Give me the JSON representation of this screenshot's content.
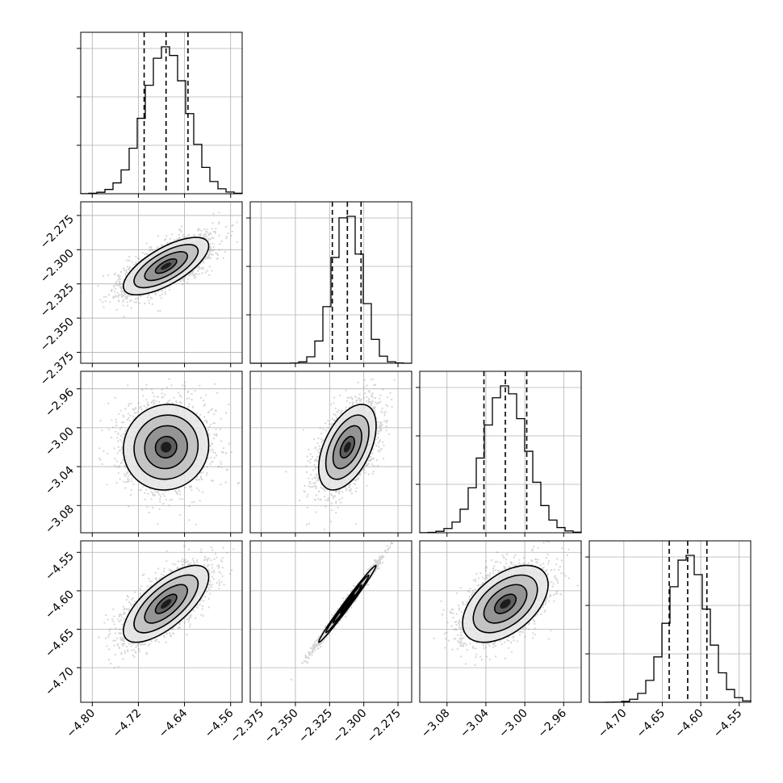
{
  "chart_data": {
    "type": "corner",
    "parameters": [
      {
        "index": 0,
        "range": [
          -4.82,
          -4.54
        ],
        "ticks": [
          -4.8,
          -4.72,
          -4.64,
          -4.56
        ],
        "tick_labels": [
          "−4.80",
          "−4.72",
          "−4.64",
          "−4.56"
        ],
        "quantiles": [
          -4.71,
          -4.672,
          -4.634
        ],
        "mean": -4.672,
        "sd": 0.037
      },
      {
        "index": 1,
        "range": [
          -2.383,
          -2.265
        ],
        "ticks": [
          -2.375,
          -2.35,
          -2.325,
          -2.3,
          -2.275
        ],
        "tick_labels": [
          "−2.375",
          "−2.350",
          "−2.325",
          "−2.300",
          "−2.275"
        ],
        "quantiles": [
          -2.323,
          -2.312,
          -2.302
        ],
        "mean": -2.312,
        "sd": 0.0105
      },
      {
        "index": 2,
        "range": [
          -3.108,
          -2.942
        ],
        "ticks": [
          -3.08,
          -3.04,
          -3.0,
          -2.96
        ],
        "tick_labels": [
          "−3.08",
          "−3.04",
          "−3.00",
          "−2.96"
        ],
        "quantiles": [
          -3.042,
          -3.02,
          -2.998
        ],
        "mean": -3.02,
        "sd": 0.022
      },
      {
        "index": 3,
        "range": [
          -4.745,
          -4.535
        ],
        "ticks": [
          -4.7,
          -4.65,
          -4.6,
          -4.55
        ],
        "tick_labels": [
          "−4.70",
          "−4.65",
          "−4.60",
          "−4.55"
        ],
        "quantiles": [
          -4.641,
          -4.617,
          -4.592
        ],
        "mean": -4.617,
        "sd": 0.025
      }
    ],
    "correlations": [
      {
        "row": 1,
        "col": 0,
        "rho": 0.7
      },
      {
        "row": 2,
        "col": 0,
        "rho": 0.05
      },
      {
        "row": 2,
        "col": 1,
        "rho": 0.5
      },
      {
        "row": 3,
        "col": 0,
        "rho": 0.7
      },
      {
        "row": 3,
        "col": 1,
        "rho": 0.99
      },
      {
        "row": 3,
        "col": 2,
        "rho": 0.5
      }
    ],
    "histogram_bins": 20,
    "contour_levels_sigma": [
      0.5,
      1.0,
      1.5,
      2.0
    ],
    "grid": true
  }
}
